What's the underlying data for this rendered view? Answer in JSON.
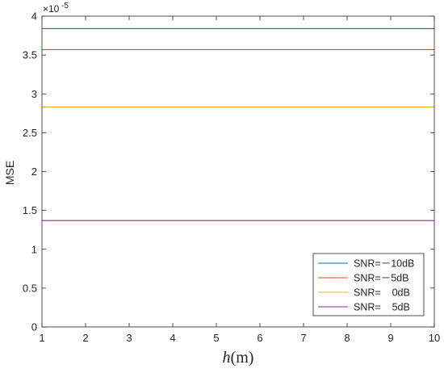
{
  "chart_data": {
    "type": "line",
    "x": [
      1,
      2,
      3,
      4,
      5,
      6,
      7,
      8,
      9,
      10
    ],
    "xlim": [
      1,
      10
    ],
    "ylim": [
      0,
      4
    ],
    "xticks": [
      "1",
      "2",
      "3",
      "4",
      "5",
      "6",
      "7",
      "8",
      "9",
      "10"
    ],
    "yticks": [
      "0",
      "0.5",
      "1",
      "1.5",
      "2",
      "2.5",
      "3",
      "3.5",
      "4"
    ],
    "y_exponent_base": "×10",
    "y_exponent_power": "-5",
    "xlabel_italic": "h",
    "xlabel_rest": "(m)",
    "ylabel": "MSE",
    "legend_position": "bottom-right",
    "grid": false,
    "series": [
      {
        "name": "SNR=－10dB",
        "color": "#0072BD",
        "values": [
          3.84,
          3.84,
          3.84,
          3.84,
          3.84,
          3.84,
          3.84,
          3.84,
          3.84,
          3.84
        ]
      },
      {
        "name": "SNR=－5dB",
        "color": "#D95319",
        "values": [
          3.57,
          3.57,
          3.57,
          3.57,
          3.57,
          3.57,
          3.57,
          3.57,
          3.57,
          3.57
        ]
      },
      {
        "name": "SNR=    0dB",
        "color": "#EDB120",
        "values": [
          2.83,
          2.83,
          2.83,
          2.83,
          2.83,
          2.83,
          2.83,
          2.83,
          2.83,
          2.83
        ]
      },
      {
        "name": "SNR=    5dB",
        "color": "#7E2F8E",
        "values": [
          1.37,
          1.37,
          1.37,
          1.37,
          1.37,
          1.37,
          1.37,
          1.37,
          1.37,
          1.37
        ]
      }
    ]
  }
}
